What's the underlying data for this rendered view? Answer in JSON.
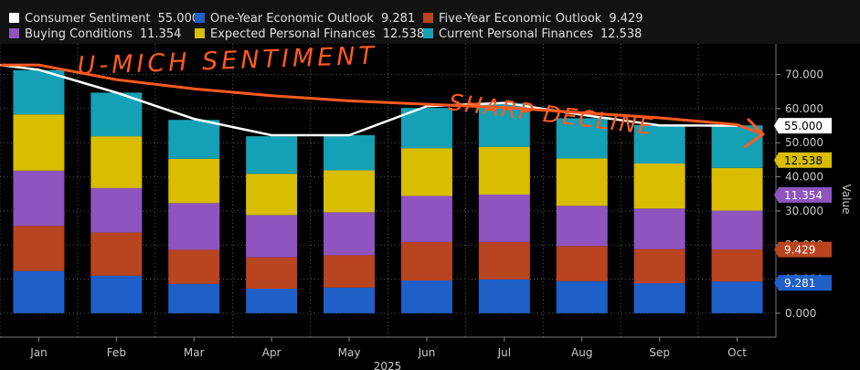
{
  "colors": {
    "consumer": "#ffffff",
    "one_year": "#1f5fc8",
    "five_year": "#b84420",
    "buying": "#8f54bf",
    "expected": "#d8bd00",
    "current": "#14a0b5",
    "annotation": "#ff5a1f",
    "grid": "#5a5a5a"
  },
  "legend": [
    {
      "name": "Consumer Sentiment",
      "value": "55.000",
      "color": "#ffffff"
    },
    {
      "name": "One-Year Economic Outlook",
      "value": "9.281",
      "color": "#1f5fc8"
    },
    {
      "name": "Five-Year Economic Outlook",
      "value": "9.429",
      "color": "#b84420"
    },
    {
      "name": "Buying Conditions",
      "value": "11.354",
      "color": "#8f54bf"
    },
    {
      "name": "Expected Personal Finances",
      "value": "12.538",
      "color": "#d8bd00"
    },
    {
      "name": "Current Personal Finances",
      "value": "12.538",
      "color": "#14a0b5"
    }
  ],
  "annotations": {
    "title": "U-MICH SENTIMENT",
    "note": "SHARP DECLINE"
  },
  "chart_data": {
    "type": "bar",
    "stacked": true,
    "categories": [
      "Jan",
      "Feb",
      "Mar",
      "Apr",
      "May",
      "Jun",
      "Jul",
      "Aug",
      "Sep",
      "Oct"
    ],
    "xlabel": "2025",
    "ylabel": "Value",
    "ylim": [
      -7,
      79
    ],
    "yticks": [
      "0.000",
      "10.000",
      "20.000",
      "30.000",
      "40.000",
      "50.000",
      "60.000",
      "70.000"
    ],
    "ytick_values": [
      0,
      10,
      20,
      30,
      40,
      50,
      60,
      70
    ],
    "series": [
      {
        "name": "One-Year Economic Outlook",
        "values": [
          12.4,
          11.0,
          8.6,
          7.2,
          7.5,
          9.6,
          9.9,
          9.4,
          8.8,
          9.3
        ]
      },
      {
        "name": "Five-Year Economic Outlook",
        "values": [
          13.2,
          12.7,
          10.0,
          9.2,
          9.5,
          11.3,
          11.0,
          10.3,
          10.0,
          9.4
        ]
      },
      {
        "name": "Buying Conditions",
        "values": [
          16.2,
          13.0,
          13.7,
          12.4,
          12.6,
          13.5,
          13.9,
          11.8,
          11.9,
          11.4
        ]
      },
      {
        "name": "Expected Personal Finances",
        "values": [
          16.5,
          15.2,
          13.0,
          12.1,
          12.3,
          14.0,
          14.0,
          13.9,
          13.2,
          12.5
        ]
      },
      {
        "name": "Current Personal Finances",
        "values": [
          13.0,
          12.8,
          11.4,
          11.0,
          10.3,
          11.8,
          12.8,
          11.8,
          11.3,
          12.5
        ]
      }
    ],
    "line": {
      "name": "Consumer Sentiment",
      "values": [
        71.4,
        64.7,
        57.0,
        52.2,
        52.2,
        60.7,
        61.7,
        58.2,
        55.1,
        55.0
      ]
    },
    "trend": {
      "name": "Sharp decline trend",
      "values": [
        72.8,
        68.5,
        65.8,
        63.8,
        62.3,
        61.3,
        60.3,
        58.8,
        57.3,
        55.3
      ]
    },
    "last_value_tags": [
      {
        "name": "Consumer Sentiment",
        "label": "55.000",
        "value": 55.0,
        "bg": "#ffffff",
        "fg": "#000000"
      },
      {
        "name": "Expected Personal Finances",
        "label": "12.538",
        "value": 44.9,
        "bg": "#d8bd00",
        "fg": "#000000"
      },
      {
        "name": "Buying Conditions",
        "label": "11.354",
        "value": 34.7,
        "bg": "#8f54bf",
        "fg": "#ffffff"
      },
      {
        "name": "Five-Year Economic Outlook",
        "label": "9.429",
        "value": 18.7,
        "bg": "#b84420",
        "fg": "#ffffff"
      },
      {
        "name": "One-Year Economic Outlook",
        "label": "9.281",
        "value": 8.9,
        "bg": "#1f5fc8",
        "fg": "#ffffff"
      }
    ]
  }
}
